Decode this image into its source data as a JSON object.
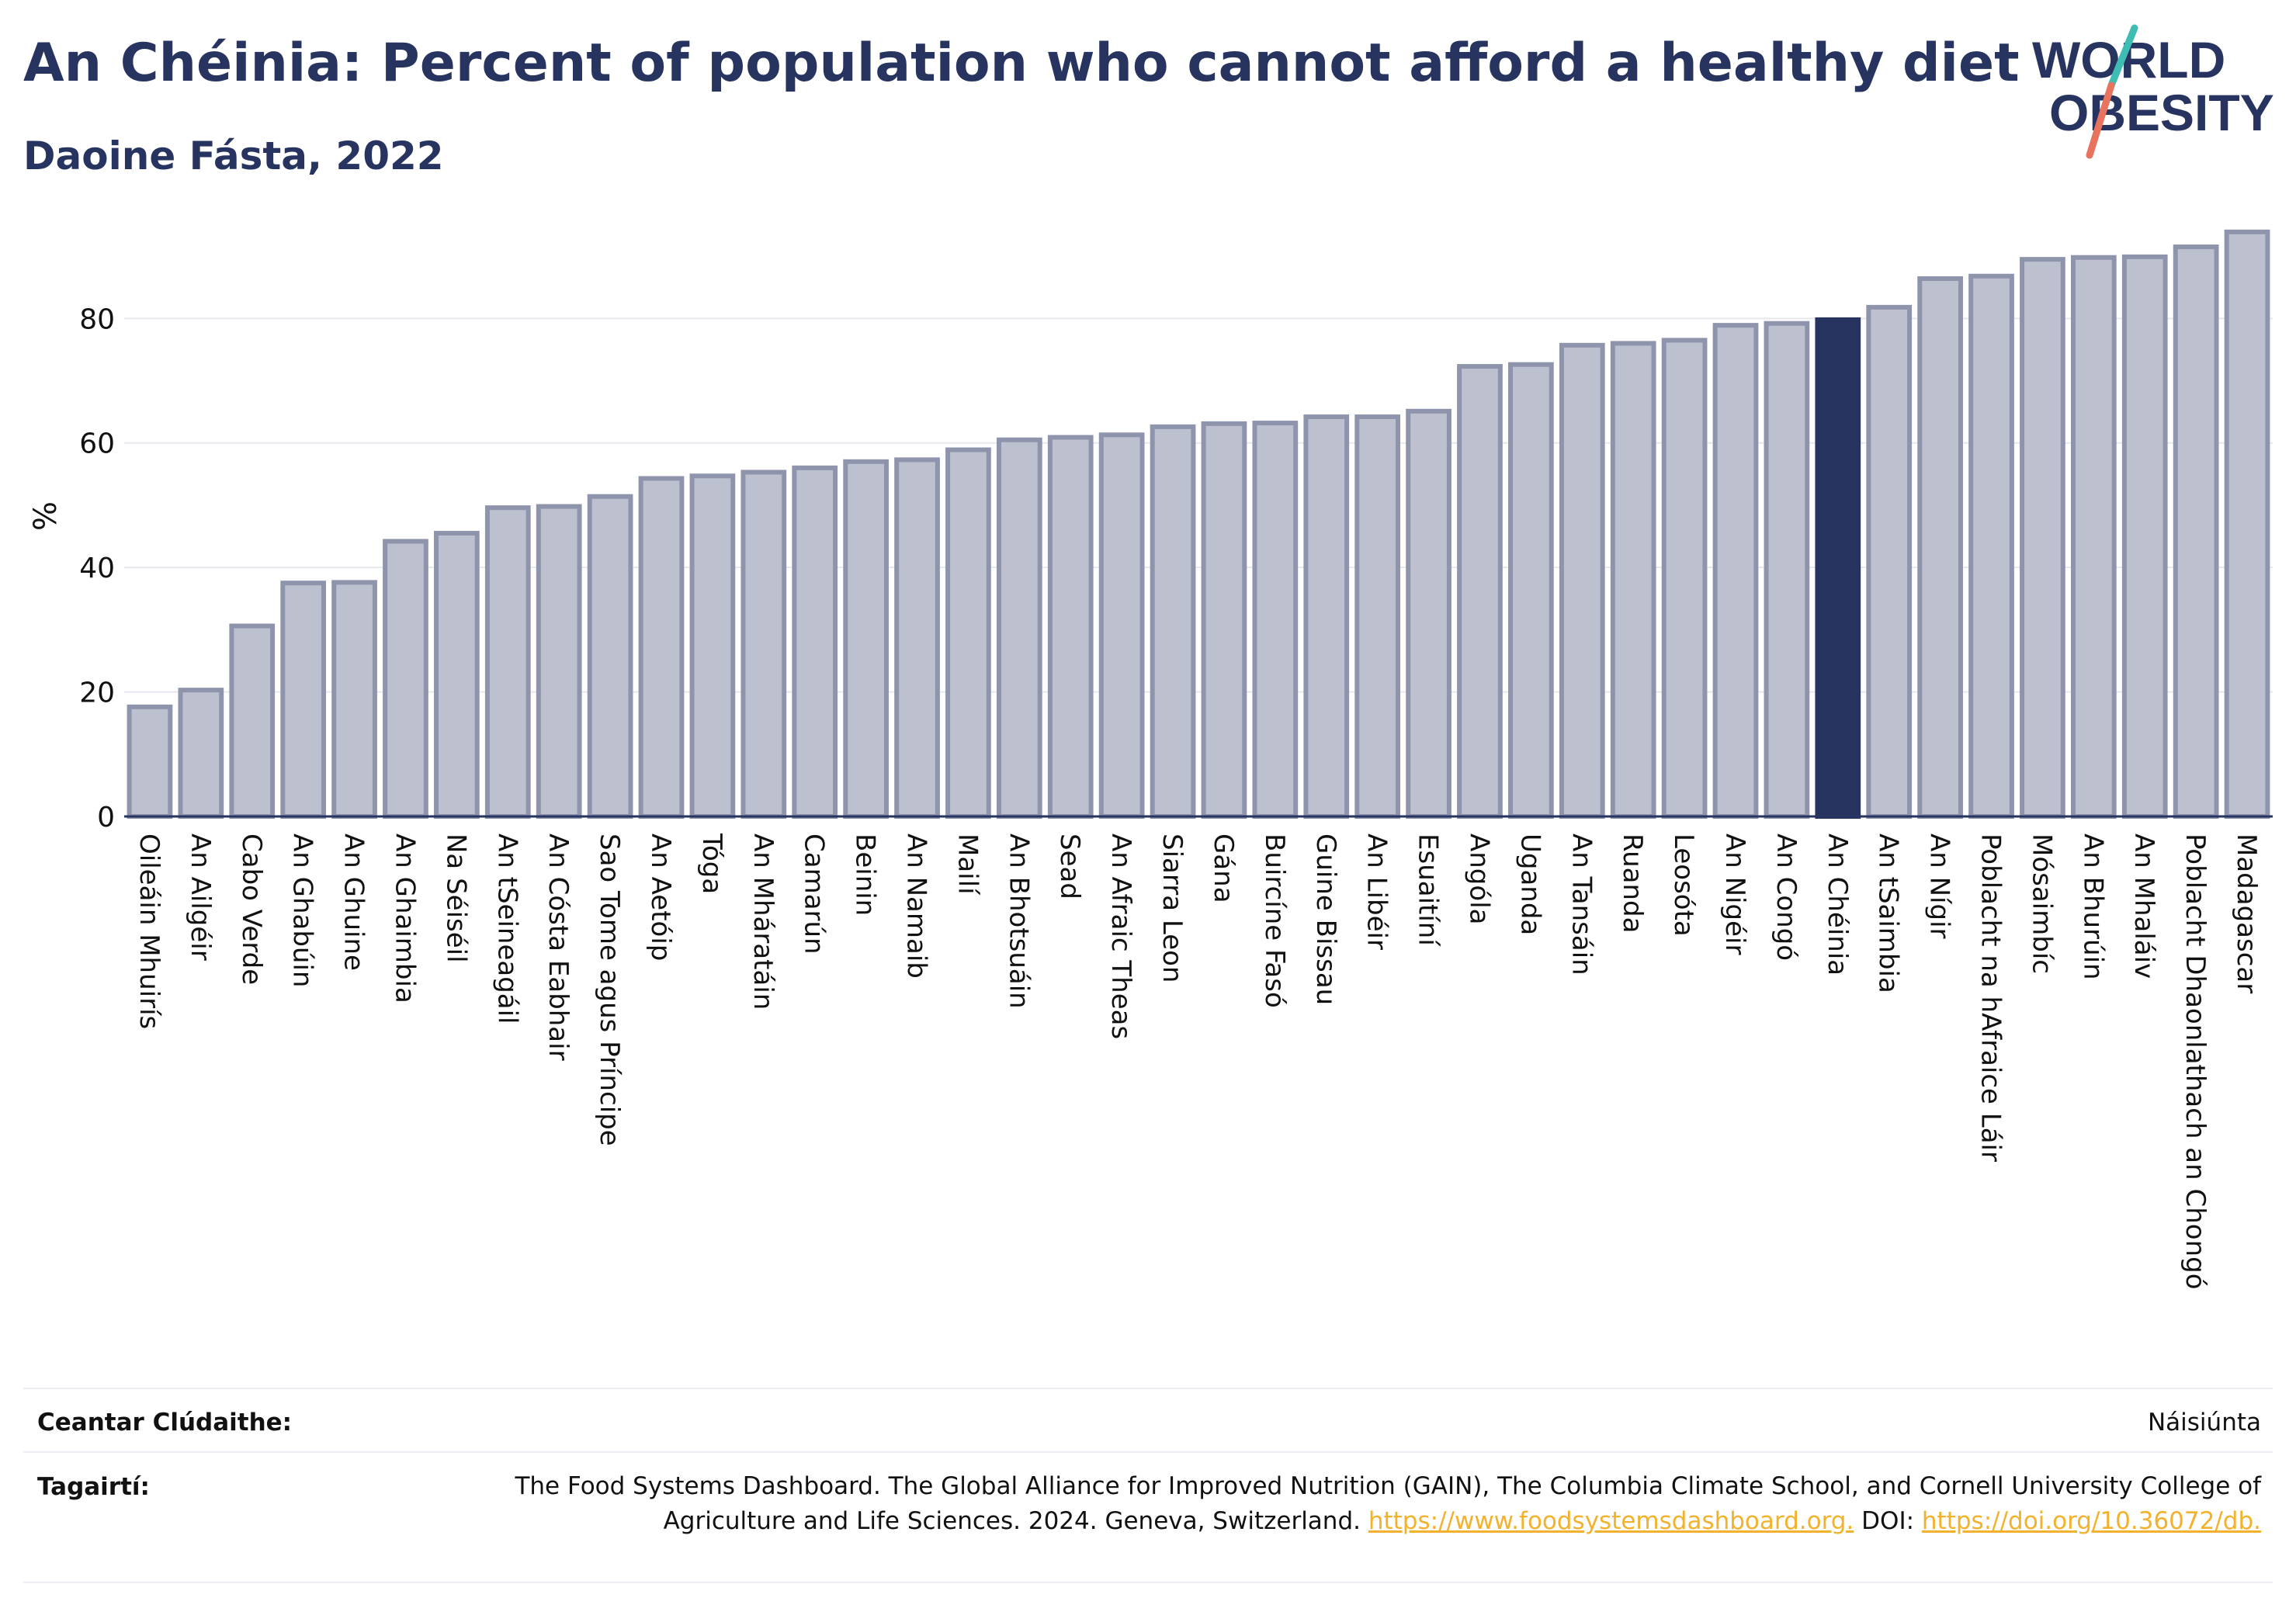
{
  "header": {
    "title": "An Chéinia: Percent of population who cannot afford a healthy diet",
    "subtitle": "Daoine Fásta, 2022"
  },
  "logo": {
    "line1": "WORLD",
    "line2": "OBESITY"
  },
  "footer": {
    "coverage_label": "Ceantar Clúdaithe:",
    "coverage_value": "Náisiúnta",
    "references_label": "Tagairtí:",
    "references_text": "The Food Systems Dashboard. The Global Alliance for Improved Nutrition (GAIN), The Columbia Climate School, and Cornell University College of Agriculture and Life Sciences. 2024. Geneva, Switzerland. ",
    "references_link1": "https://www.foodsystemsdashboard.org.",
    "references_doi_label": " DOI: ",
    "references_link2": "https://doi.org/10.36072/db."
  },
  "colors": {
    "bar_fill": "#bcc0cf",
    "bar_stroke": "#8e94ac",
    "highlight": "#283460",
    "grid": "#e6e8ee",
    "axis": "#283460"
  },
  "chart_data": {
    "type": "bar",
    "ylabel": "%",
    "ylim": [
      0,
      95
    ],
    "yticks": [
      0,
      20,
      40,
      60,
      80
    ],
    "highlight": "An Chéinia",
    "categories": [
      "Oileáin Mhuirís",
      "An Ailgéir",
      "Cabo Verde",
      "An Ghabúin",
      "An Ghuine",
      "An Ghaimbia",
      "Na Séiséil",
      "An tSeineagáil",
      "An Cósta Eabhair",
      "Sao Tome agus Príncipe",
      "An Aetóip",
      "Tóga",
      "An Mháratáin",
      "Camarún",
      "Beinin",
      "An Namaib",
      "Mailí",
      "An Bhotsuáin",
      "Sead",
      "An Afraic Theas",
      "Siarra Leon",
      "Gána",
      "Buircíne Fasó",
      "Guine Bissau",
      "An Libéir",
      "Esuaitíní",
      "Angóla",
      "Uganda",
      "An Tansáin",
      "Ruanda",
      "Leosóta",
      "An Nigéir",
      "An Congó",
      "An Chéinia",
      "An tSaimbia",
      "An Nígir",
      "Poblacht na hAfraice Láir",
      "Mósaimbíc",
      "An Bhurúin",
      "An Mhaláiv",
      "Poblacht Dhaonlathach an Chongó",
      "Madagascar"
    ],
    "values": [
      17.6,
      20.3,
      30.6,
      37.5,
      37.6,
      44.2,
      45.5,
      49.6,
      49.8,
      51.4,
      54.3,
      54.7,
      55.3,
      56.0,
      57.0,
      57.3,
      58.9,
      60.5,
      60.9,
      61.3,
      62.6,
      63.1,
      63.2,
      64.2,
      64.2,
      65.1,
      72.3,
      72.6,
      75.7,
      76.0,
      76.5,
      78.9,
      79.2,
      79.8,
      81.8,
      86.4,
      86.8,
      89.5,
      89.8,
      89.9,
      91.5,
      93.9
    ]
  }
}
